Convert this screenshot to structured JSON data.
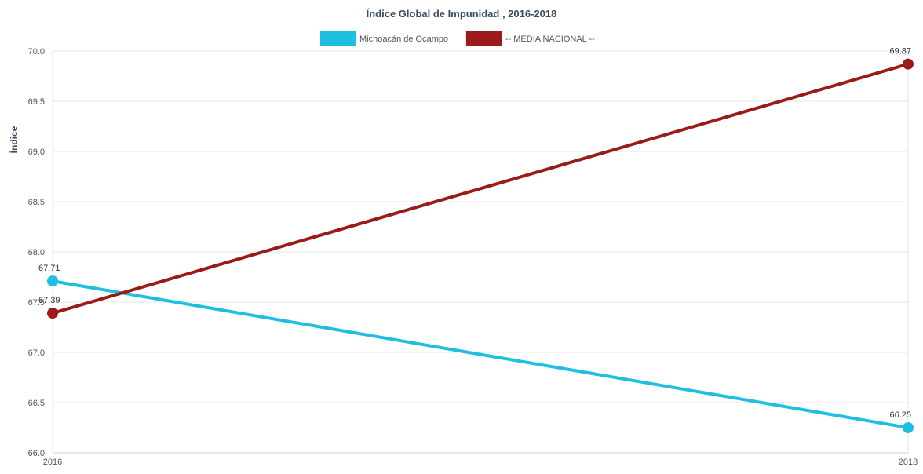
{
  "chart_data": {
    "type": "line",
    "title": "Índice Global de Impunidad , 2016-2018",
    "xlabel": "",
    "ylabel": "Índice",
    "categories": [
      "2016",
      "2018"
    ],
    "ylim": [
      66.0,
      70.0
    ],
    "yticks": [
      "66.0",
      "66.5",
      "67.0",
      "67.5",
      "68.0",
      "68.5",
      "69.0",
      "69.5",
      "70.0"
    ],
    "grid": true,
    "legend_position": "top",
    "series": [
      {
        "name": "Michoacán de Ocampo",
        "color": "#1fbfe0",
        "values": [
          67.71,
          66.25
        ],
        "labels": [
          "67.71",
          "66.25"
        ]
      },
      {
        "name": "-- MEDIA NACIONAL --",
        "color": "#9b1b1b",
        "values": [
          67.39,
          69.87
        ],
        "labels": [
          "67.39",
          "69.87"
        ]
      }
    ]
  }
}
